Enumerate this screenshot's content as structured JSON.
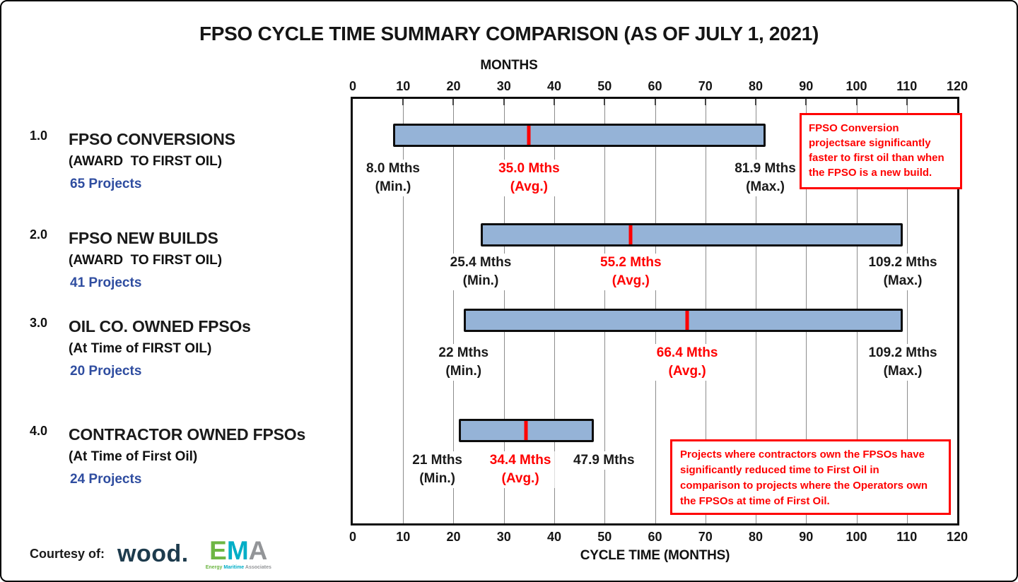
{
  "title": "FPSO CYCLE TIME SUMMARY COMPARISON (AS OF JULY 1, 2021)",
  "top_axis_label": "MONTHS",
  "bottom_axis_label": "CYCLE TIME (MONTHS)",
  "axis": {
    "min": 0,
    "max": 120,
    "tick_step": 10,
    "ticks": [
      0,
      10,
      20,
      30,
      40,
      50,
      60,
      70,
      80,
      90,
      100,
      110,
      120
    ]
  },
  "colors": {
    "bar_fill": "#95B3D7",
    "bar_border": "#0d0d0d",
    "avg_marker": "#FF0000",
    "annotation_red": "#FF0000",
    "projects_blue": "#2F4DA0",
    "gridline_gray": "#8c8c8c",
    "wood_logo": "#1D3B4D",
    "ema_green": "#6DB644",
    "ema_teal": "#00AEC7",
    "ema_gray": "#939598"
  },
  "rows": [
    {
      "number": "1.0",
      "title": "FPSO CONVERSIONS",
      "subtitle": "(AWARD  TO FIRST OIL)",
      "projects": "65 Projects",
      "min": 8.0,
      "avg": 35.0,
      "max": 81.9,
      "min_label": "8.0 Mths",
      "min_sub": "(Min.)",
      "avg_label": "35.0 Mths",
      "avg_sub": "(Avg.)",
      "max_label": "81.9 Mths",
      "max_sub": "(Max.)"
    },
    {
      "number": "2.0",
      "title": "FPSO NEW BUILDS",
      "subtitle": "(AWARD  TO FIRST OIL)",
      "projects": "41 Projects",
      "min": 25.4,
      "avg": 55.2,
      "max": 109.2,
      "min_label": "25.4 Mths",
      "min_sub": "(Min.)",
      "avg_label": "55.2 Mths",
      "avg_sub": "(Avg.)",
      "max_label": "109.2 Mths",
      "max_sub": "(Max.)"
    },
    {
      "number": "3.0",
      "title": "OIL CO. OWNED FPSOs",
      "subtitle": "(At Time of FIRST OIL)",
      "projects": "20 Projects",
      "min": 22,
      "avg": 66.4,
      "max": 109.2,
      "min_label": "22 Mths",
      "min_sub": "(Min.)",
      "avg_label": "66.4 Mths",
      "avg_sub": "(Avg.)",
      "max_label": "109.2 Mths",
      "max_sub": "(Max.)"
    },
    {
      "number": "4.0",
      "title": "CONTRACTOR OWNED FPSOs",
      "subtitle": "(At Time of First Oil)",
      "projects": "24 Projects",
      "min": 21,
      "avg": 34.4,
      "max": 47.9,
      "min_label": "21 Mths",
      "min_sub": "(Min.)",
      "avg_label": "34.4 Mths",
      "avg_sub": "(Avg.)",
      "max_label": "47.9 Mths",
      "max_sub": ""
    }
  ],
  "annotations": [
    {
      "text": "FPSO Conversion projectsare significantly faster to first oil than when the FPSO is a new build."
    },
    {
      "text": "Projects where contractors own the FPSOs have significantly reduced time to First Oil in comparison to projects where the Operators own the FPSOs at time of First Oil."
    }
  ],
  "footer": {
    "courtesy": "Courtesy of:",
    "wood": "wood.",
    "ema": {
      "e": "E",
      "m": "M",
      "a": "A",
      "sub_energy": "Energy",
      "sub_maritime": "Maritime",
      "sub_associates": "Associates"
    }
  },
  "chart_data": {
    "type": "bar",
    "orientation": "horizontal",
    "title": "FPSO CYCLE TIME SUMMARY COMPARISON (AS OF JULY 1, 2021)",
    "xlabel": "CYCLE TIME (MONTHS)",
    "top_axis_label": "MONTHS",
    "xlim": [
      0,
      120
    ],
    "xticks": [
      0,
      10,
      20,
      30,
      40,
      50,
      60,
      70,
      80,
      90,
      100,
      110,
      120
    ],
    "grid": true,
    "categories": [
      "1.0 FPSO CONVERSIONS (AWARD TO FIRST OIL) - 65 Projects",
      "2.0 FPSO NEW BUILDS (AWARD TO FIRST OIL) - 41 Projects",
      "3.0 OIL CO. OWNED FPSOs (At Time of FIRST OIL) - 20 Projects",
      "4.0 CONTRACTOR OWNED FPSOs (At Time of First Oil) - 24 Projects"
    ],
    "series": [
      {
        "name": "Min (Months)",
        "values": [
          8.0,
          25.4,
          22,
          21
        ]
      },
      {
        "name": "Avg (Months)",
        "values": [
          35.0,
          55.2,
          66.4,
          34.4
        ]
      },
      {
        "name": "Max (Months)",
        "values": [
          81.9,
          109.2,
          109.2,
          47.9
        ]
      }
    ],
    "project_counts": [
      65,
      41,
      20,
      24
    ],
    "bar_style": "floating range bar from Min to Max with red Avg tick marker"
  }
}
